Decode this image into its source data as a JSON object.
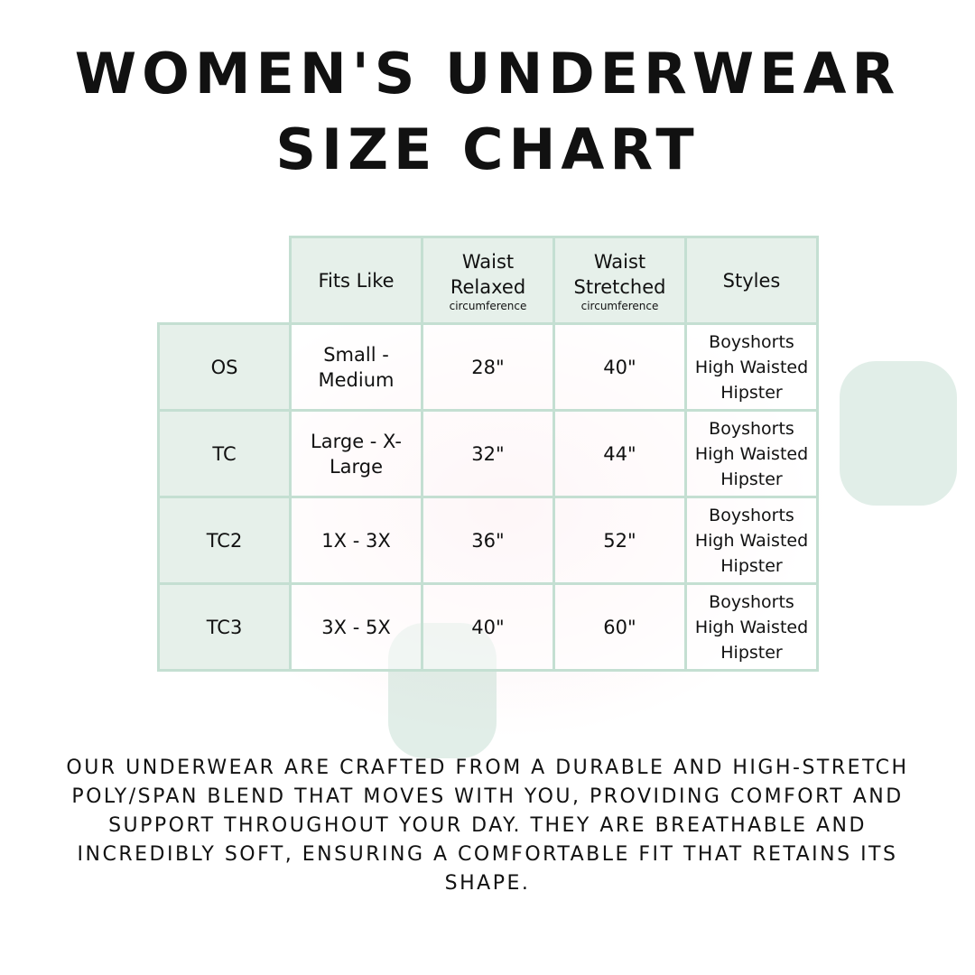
{
  "title": {
    "line1": "Women's Underwear",
    "line2": "Size Chart"
  },
  "table": {
    "headers": [
      {
        "main": "Fits Like",
        "sub": ""
      },
      {
        "main": "Waist Relaxed",
        "sub": "circumference"
      },
      {
        "main": "Waist Stretched",
        "sub": "circumference"
      },
      {
        "main": "Styles",
        "sub": ""
      }
    ],
    "rows": [
      {
        "size": "OS",
        "fits": "Small - Medium",
        "relaxed": "28\"",
        "stretched": "40\"",
        "styles": [
          "Boyshorts",
          "High Waisted",
          "Hipster"
        ]
      },
      {
        "size": "TC",
        "fits": "Large - X-Large",
        "relaxed": "32\"",
        "stretched": "44\"",
        "styles": [
          "Boyshorts",
          "High Waisted",
          "Hipster"
        ]
      },
      {
        "size": "TC2",
        "fits": "1X - 3X",
        "relaxed": "36\"",
        "stretched": "52\"",
        "styles": [
          "Boyshorts",
          "High Waisted",
          "Hipster"
        ]
      },
      {
        "size": "TC3",
        "fits": "3X - 5X",
        "relaxed": "40\"",
        "stretched": "60\"",
        "styles": [
          "Boyshorts",
          "High Waisted",
          "Hipster"
        ]
      }
    ]
  },
  "description": "Our underwear are crafted from a durable and high-stretch poly/span blend that moves with you, providing comfort and support throughout your day. They are breathable and incredibly soft, ensuring a comfortable fit that retains its shape.",
  "colors": {
    "border": "#c4dfd2",
    "header_bg": "#e6f0ea"
  }
}
